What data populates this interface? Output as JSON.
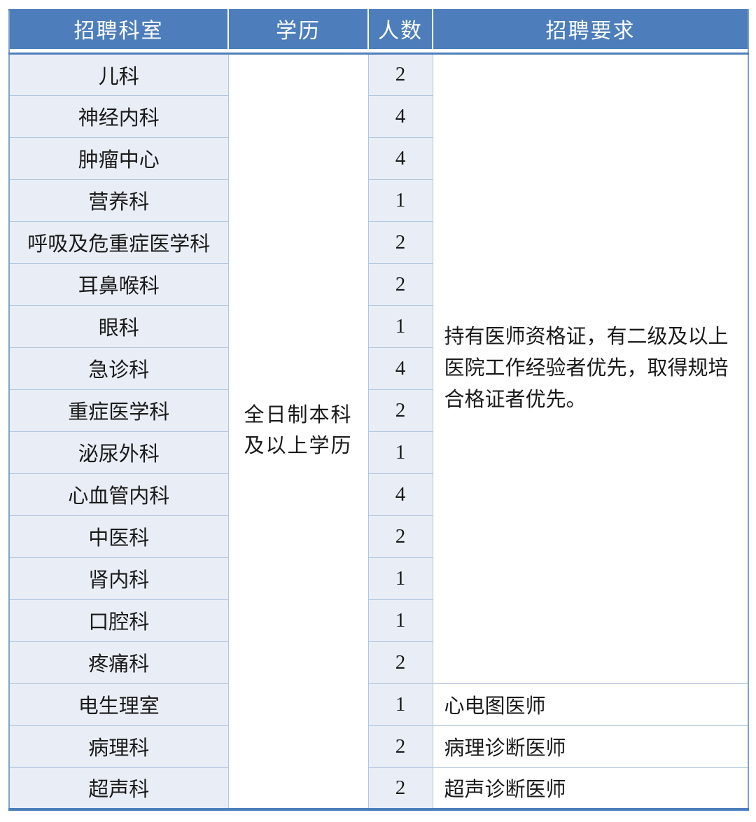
{
  "table": {
    "headers": [
      "招聘科室",
      "学历",
      "人数",
      "招聘要求"
    ],
    "education": "全日制本科\n及以上学历",
    "requirement": "持有医师资格证，有二级及以上\n医院工作经验者优先，取得规培\n合格证者优先。",
    "rows": [
      {
        "dept": "儿科",
        "count": "2"
      },
      {
        "dept": "神经内科",
        "count": "4"
      },
      {
        "dept": "肿瘤中心",
        "count": "4"
      },
      {
        "dept": "营养科",
        "count": "1"
      },
      {
        "dept": "呼吸及危重症医学科",
        "count": "2"
      },
      {
        "dept": "耳鼻喉科",
        "count": "2"
      },
      {
        "dept": "眼科",
        "count": "1"
      },
      {
        "dept": "急诊科",
        "count": "4"
      },
      {
        "dept": "重症医学科",
        "count": "2"
      },
      {
        "dept": "泌尿外科",
        "count": "1"
      },
      {
        "dept": "心血管内科",
        "count": "4"
      },
      {
        "dept": "中医科",
        "count": "2"
      },
      {
        "dept": "肾内科",
        "count": "1"
      },
      {
        "dept": "口腔科",
        "count": "1"
      },
      {
        "dept": "疼痛科",
        "count": "2"
      },
      {
        "dept": "电生理室",
        "count": "1",
        "req": "心电图医师"
      },
      {
        "dept": "病理科",
        "count": "2",
        "req": "病理诊断医师"
      },
      {
        "dept": "超声科",
        "count": "2",
        "req": "超声诊断医师"
      }
    ],
    "colors": {
      "header_bg": "#4D7EBB",
      "header_text": "#ffffff",
      "band_bg": "#E9EEF6",
      "inner_border": "#B0C5DE",
      "outer_border": "#4D7EBB",
      "body_text": "#1a1a1a"
    }
  }
}
